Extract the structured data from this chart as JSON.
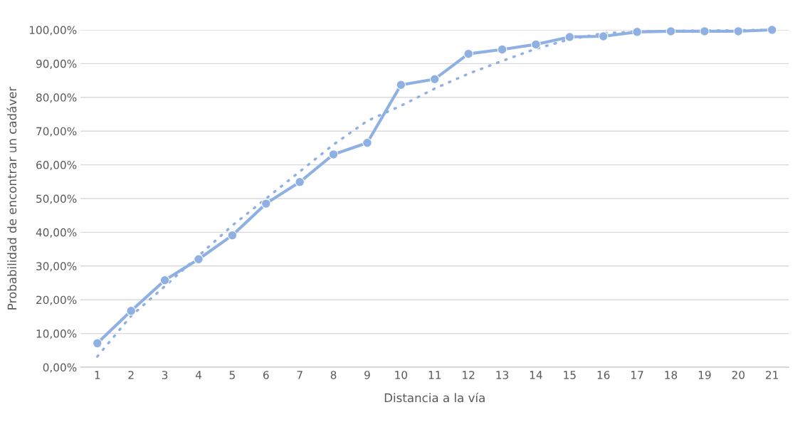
{
  "chart_data": {
    "type": "line",
    "xlabel": "Distancia a la vía",
    "ylabel": "Probabilidad de encontrar un cadáver",
    "categories": [
      "1",
      "2",
      "3",
      "4",
      "5",
      "6",
      "7",
      "8",
      "9",
      "10",
      "11",
      "12",
      "13",
      "14",
      "15",
      "16",
      "17",
      "18",
      "19",
      "20",
      "21"
    ],
    "series": [
      {
        "color": "#8fb0e2",
        "marker": "circle",
        "line_style": "solid",
        "values": [
          7.1,
          16.7,
          25.8,
          32.0,
          39.1,
          48.5,
          54.9,
          63.1,
          66.5,
          83.7,
          85.4,
          92.9,
          94.2,
          95.7,
          97.9,
          98.1,
          99.4,
          99.6,
          99.6,
          99.6,
          100
        ]
      },
      {
        "color": "#8fb0e2",
        "marker": "none",
        "line_style": "dotted",
        "values": [
          3.2,
          15.2,
          24,
          33,
          42,
          50,
          58,
          66,
          73,
          77.5,
          82.6,
          87,
          90.8,
          94.4,
          97.2,
          99,
          99.5,
          99.7,
          99.8,
          99.9,
          100
        ]
      }
    ],
    "ylim": [
      0,
      100
    ],
    "yticks": [
      {
        "value": 0,
        "label": "0,00%"
      },
      {
        "value": 10,
        "label": "10,00%"
      },
      {
        "value": 20,
        "label": "20,00%"
      },
      {
        "value": 30,
        "label": "30,00%"
      },
      {
        "value": 40,
        "label": "40,00%"
      },
      {
        "value": 50,
        "label": "50,00%"
      },
      {
        "value": 60,
        "label": "60,00%"
      },
      {
        "value": 70,
        "label": "70,00%"
      },
      {
        "value": 80,
        "label": "80,00%"
      },
      {
        "value": 90,
        "label": "90,00%"
      },
      {
        "value": 100,
        "label": "100,00%"
      }
    ],
    "grid": "y"
  }
}
